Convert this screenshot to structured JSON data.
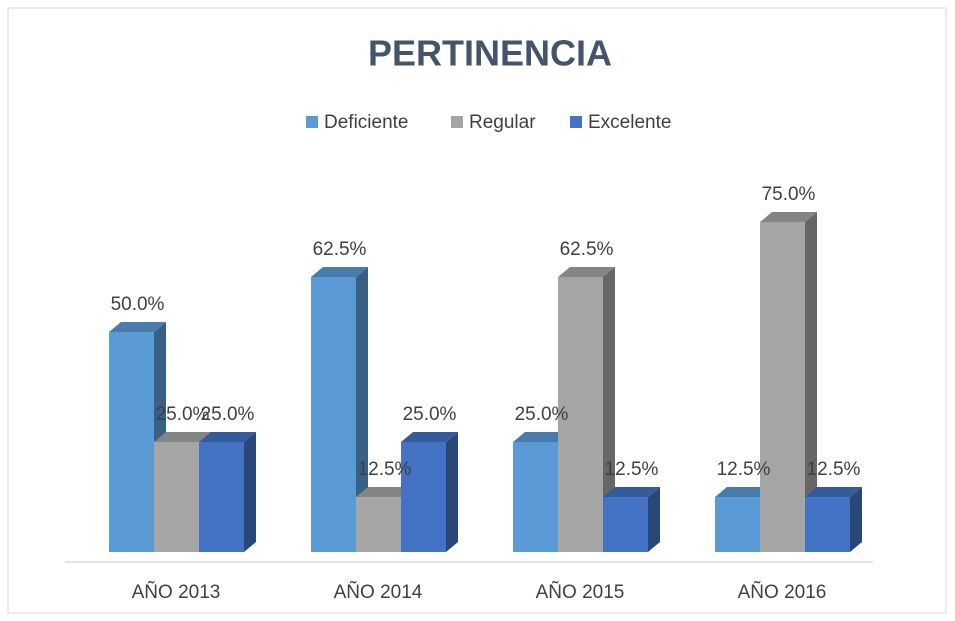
{
  "chart_data": {
    "type": "bar",
    "title": "PERTINENCIA",
    "categories": [
      "AÑO 2013",
      "AÑO 2014",
      "AÑO 2015",
      "AÑO 2016"
    ],
    "series": [
      {
        "name": "Deficiente",
        "color": "#5b9bd5",
        "values": [
          50.0,
          62.5,
          25.0,
          12.5
        ],
        "value_labels": [
          "50.0%",
          "62.5%",
          "25.0%",
          "12.5%"
        ]
      },
      {
        "name": "Regular",
        "color": "#a5a5a5",
        "values": [
          25.0,
          12.5,
          62.5,
          75.0
        ],
        "value_labels": [
          "25.0%",
          "12.5%",
          "62.5%",
          "75.0%"
        ]
      },
      {
        "name": "Excelente",
        "color": "#4472c4",
        "values": [
          25.0,
          25.0,
          12.5,
          12.5
        ],
        "value_labels": [
          "25.0%",
          "25.0%",
          "12.5%",
          "12.5%"
        ]
      }
    ],
    "legend": "top"
  }
}
